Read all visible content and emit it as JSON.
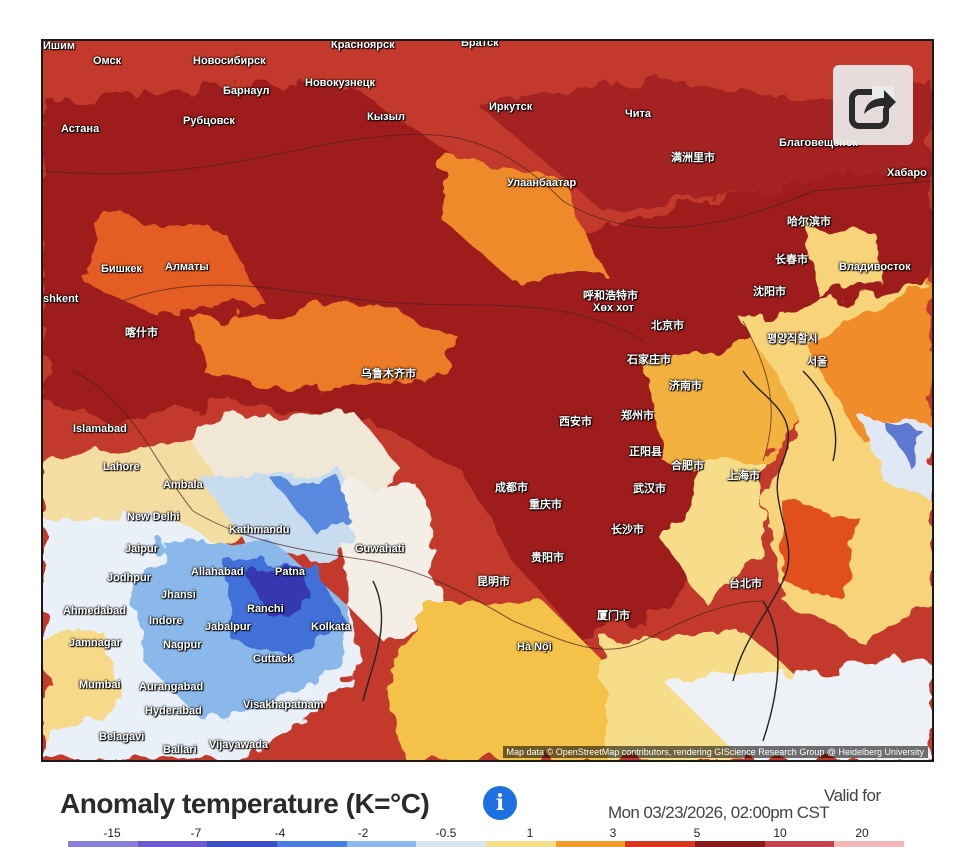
{
  "map": {
    "attribution": "Map data © OpenStreetMap contributors, rendering GIScience Research Group @ Heidelberg University",
    "cities": [
      {
        "name": "Ишим"
      },
      {
        "name": "Омск"
      },
      {
        "name": "Новосибирск"
      },
      {
        "name": "Красноярск"
      },
      {
        "name": "Братск"
      },
      {
        "name": "Барнаул"
      },
      {
        "name": "Новокузнецк"
      },
      {
        "name": "Астана"
      },
      {
        "name": "Рубцовск"
      },
      {
        "name": "Кызыл"
      },
      {
        "name": "Иркутск"
      },
      {
        "name": "Чита"
      },
      {
        "name": "Улаанбаатар"
      },
      {
        "name": "Благовещенск"
      },
      {
        "name": "Хабаро"
      },
      {
        "name": "满洲里市"
      },
      {
        "name": "哈尔滨市"
      },
      {
        "name": "长春市"
      },
      {
        "name": "Владивосток"
      },
      {
        "name": "Бишкек"
      },
      {
        "name": "Алматы"
      },
      {
        "name": "shkent"
      },
      {
        "name": "喀什市"
      },
      {
        "name": "呼和浩特市"
      },
      {
        "name": "Хөх хот"
      },
      {
        "name": "沈阳市"
      },
      {
        "name": "北京市"
      },
      {
        "name": "평양직할시"
      },
      {
        "name": "石家庄市"
      },
      {
        "name": "济南市"
      },
      {
        "name": "乌鲁木齐市"
      },
      {
        "name": "Islamabad"
      },
      {
        "name": "西安市"
      },
      {
        "name": "郑州市"
      },
      {
        "name": "Lahore"
      },
      {
        "name": "Ambala"
      },
      {
        "name": "正阳县"
      },
      {
        "name": "合肥市"
      },
      {
        "name": "上海市"
      },
      {
        "name": "成都市"
      },
      {
        "name": "武汉市"
      },
      {
        "name": "重庆市"
      },
      {
        "name": "New Delhi"
      },
      {
        "name": "Kathmandu"
      },
      {
        "name": "长沙市"
      },
      {
        "name": "Jaipur"
      },
      {
        "name": "Guwahati"
      },
      {
        "name": "贵阳市"
      },
      {
        "name": "Jodhpur"
      },
      {
        "name": "Allahabad"
      },
      {
        "name": "Patna"
      },
      {
        "name": "昆明市"
      },
      {
        "name": "Jhansi"
      },
      {
        "name": "台北市"
      },
      {
        "name": "Ahmedabad"
      },
      {
        "name": "Indore"
      },
      {
        "name": "Ranchi"
      },
      {
        "name": "Jabalpur"
      },
      {
        "name": "Kolkata"
      },
      {
        "name": "厦门市"
      },
      {
        "name": "Jamnagar"
      },
      {
        "name": "Nagpur"
      },
      {
        "name": "Cuttack"
      },
      {
        "name": "Hà Nội"
      },
      {
        "name": "Mumbai"
      },
      {
        "name": "Aurangabad"
      },
      {
        "name": "Hyderabad"
      },
      {
        "name": "Visakhapatnam"
      },
      {
        "name": "Belagavi"
      },
      {
        "name": "Ballari"
      },
      {
        "name": "Vijayawada"
      },
      {
        "name": "서울"
      },
      {
        "name": "Lahore"
      }
    ]
  },
  "share_icon": "share-arrow-icon",
  "legend": {
    "title": "Anomaly temperature (K=°C)",
    "info_icon": "info-icon",
    "info_glyph": "i",
    "valid_label": "Valid for",
    "valid_date": "Mon 03/23/2026, 02:00pm CST",
    "ticks": [
      "-15",
      "-7",
      "-4",
      "-2",
      "-0.5",
      "1",
      "3",
      "5",
      "10",
      "20"
    ],
    "colors": [
      "#8a7fd6",
      "#6a5acd",
      "#3b4fc4",
      "#4a7fe0",
      "#8ab8ea",
      "#d8e6f2",
      "#f5e08a",
      "#f29a2e",
      "#d9361d",
      "#8b1a1a",
      "#c2454d",
      "#f2b8b8"
    ]
  }
}
